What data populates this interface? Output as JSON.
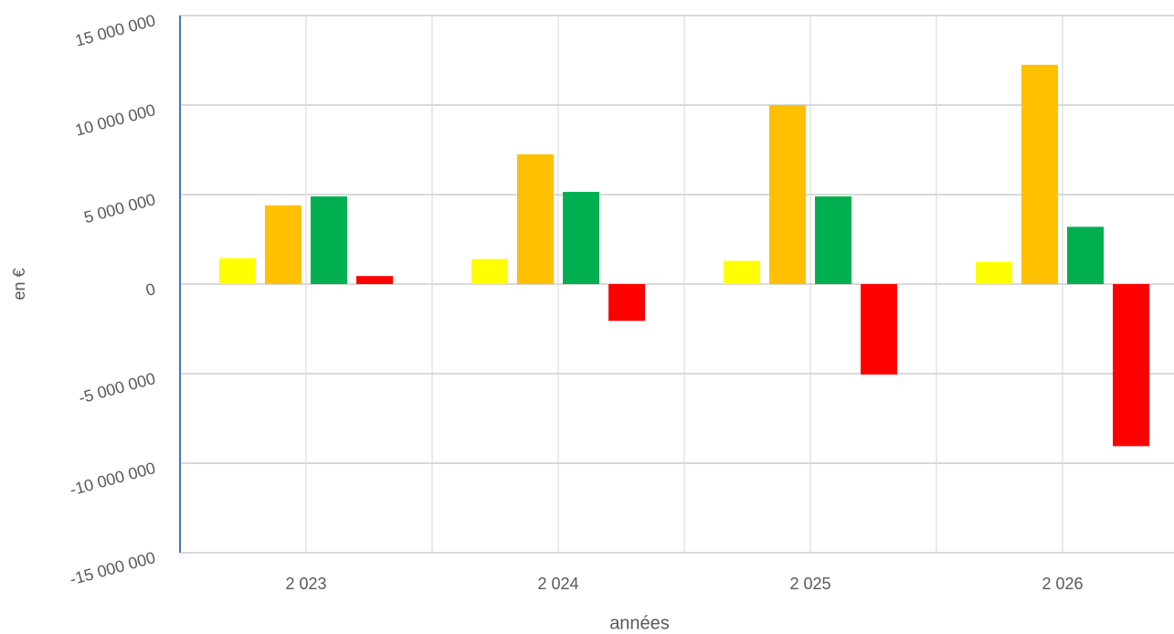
{
  "chart_data": {
    "type": "bar",
    "x_label": "années",
    "y_label": "en €",
    "categories": [
      "2 023",
      "2 024",
      "2 025",
      "2 026"
    ],
    "series": [
      {
        "color": "#ffff00",
        "values": [
          1450000,
          1400000,
          1300000,
          1250000
        ]
      },
      {
        "color": "#ffc000",
        "values": [
          4400000,
          7250000,
          10000000,
          12250000
        ]
      },
      {
        "color": "#00b050",
        "values": [
          4900000,
          5150000,
          4900000,
          3200000
        ]
      },
      {
        "color": "#ff0000",
        "values": [
          450000,
          -2050000,
          -5050000,
          -9050000
        ]
      }
    ],
    "ylim": [
      -15000000,
      15000000
    ],
    "yticks": [
      {
        "value": -15000000,
        "label": "-15 000 000"
      },
      {
        "value": -10000000,
        "label": "-10 000 000"
      },
      {
        "value": -5000000,
        "label": "-5 000 000"
      },
      0,
      {
        "value": 5000000,
        "label": "5 000 000"
      },
      {
        "value": 10000000,
        "label": "10 000 000"
      },
      {
        "value": 15000000,
        "label": "15 000 000"
      }
    ],
    "grid": true
  }
}
